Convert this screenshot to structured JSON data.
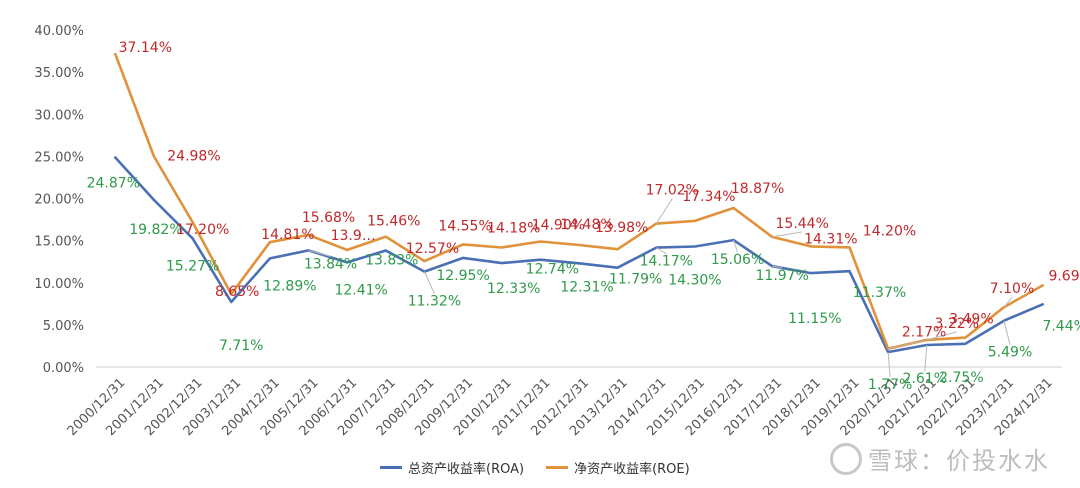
{
  "chart_data": {
    "type": "line",
    "categories": [
      "2000/12/31",
      "2001/12/31",
      "2002/12/31",
      "2003/12/31",
      "2004/12/31",
      "2005/12/31",
      "2006/12/31",
      "2007/12/31",
      "2008/12/31",
      "2009/12/31",
      "2010/12/31",
      "2011/12/31",
      "2012/12/31",
      "2013/12/31",
      "2014/12/31",
      "2015/12/31",
      "2016/12/31",
      "2017/12/31",
      "2018/12/31",
      "2019/12/31",
      "2020/12/31",
      "2021/12/31",
      "2022/12/31",
      "2023/12/31",
      "2024/12/31"
    ],
    "series": [
      {
        "name": "总资产收益率(ROA)",
        "color": "#4a6fb5",
        "label_color": "#2e9a4a",
        "values": [
          24.87,
          19.82,
          15.27,
          7.71,
          12.89,
          13.84,
          12.41,
          13.83,
          11.32,
          12.95,
          12.33,
          12.74,
          12.31,
          11.79,
          14.17,
          14.3,
          15.06,
          11.97,
          11.15,
          11.37,
          1.77,
          2.61,
          2.75,
          5.49,
          7.44
        ],
        "labels": [
          "24.87%",
          "19.82%",
          "15.27%",
          "7.71%",
          "12.89%",
          "13.84%",
          "12.41%",
          "13.83%",
          "11.32%",
          "12.95%",
          "12.33%",
          "12.74%",
          "12.31%",
          "11.79%",
          "14.17%",
          "14.30%",
          "15.06%",
          "11.97%",
          "11.15%",
          "11.37%",
          "1.77%",
          "2.61%",
          "2.75%",
          "5.49%",
          "7.44%"
        ]
      },
      {
        "name": "净资产收益率(ROE)",
        "color": "#e0913a",
        "label_color": "#c0292b",
        "values": [
          37.14,
          24.98,
          17.2,
          8.65,
          14.81,
          15.68,
          13.9,
          15.46,
          12.57,
          14.55,
          14.18,
          14.9,
          14.48,
          13.98,
          17.02,
          17.34,
          18.87,
          15.44,
          14.31,
          14.2,
          2.17,
          3.22,
          3.49,
          7.1,
          9.69
        ],
        "labels": [
          "37.14%",
          "24.98%",
          "17.20%",
          "8.65%",
          "14.81%",
          "15.68%",
          "13.9…",
          "15.46%",
          "12.57%",
          "14.55%",
          "14.18%",
          "14.90%",
          "14.48%",
          "13.98%",
          "17.02%",
          "17.34%",
          "18.87%",
          "15.44%",
          "14.31%",
          "14.20%",
          "2.17%",
          "3.22%",
          "3.49%",
          "7.10%",
          "9.69%"
        ]
      }
    ],
    "y_ticks": [
      "0.00%",
      "5.00%",
      "10.00%",
      "15.00%",
      "20.00%",
      "25.00%",
      "30.00%",
      "35.00%",
      "40.00%"
    ],
    "ylim": [
      0,
      40
    ],
    "grid": false,
    "legend_position": "bottom",
    "title": "",
    "xlabel": "",
    "ylabel": ""
  },
  "watermark": {
    "text": "雪球：价投水水",
    "icon": "snowball-logo-icon"
  }
}
